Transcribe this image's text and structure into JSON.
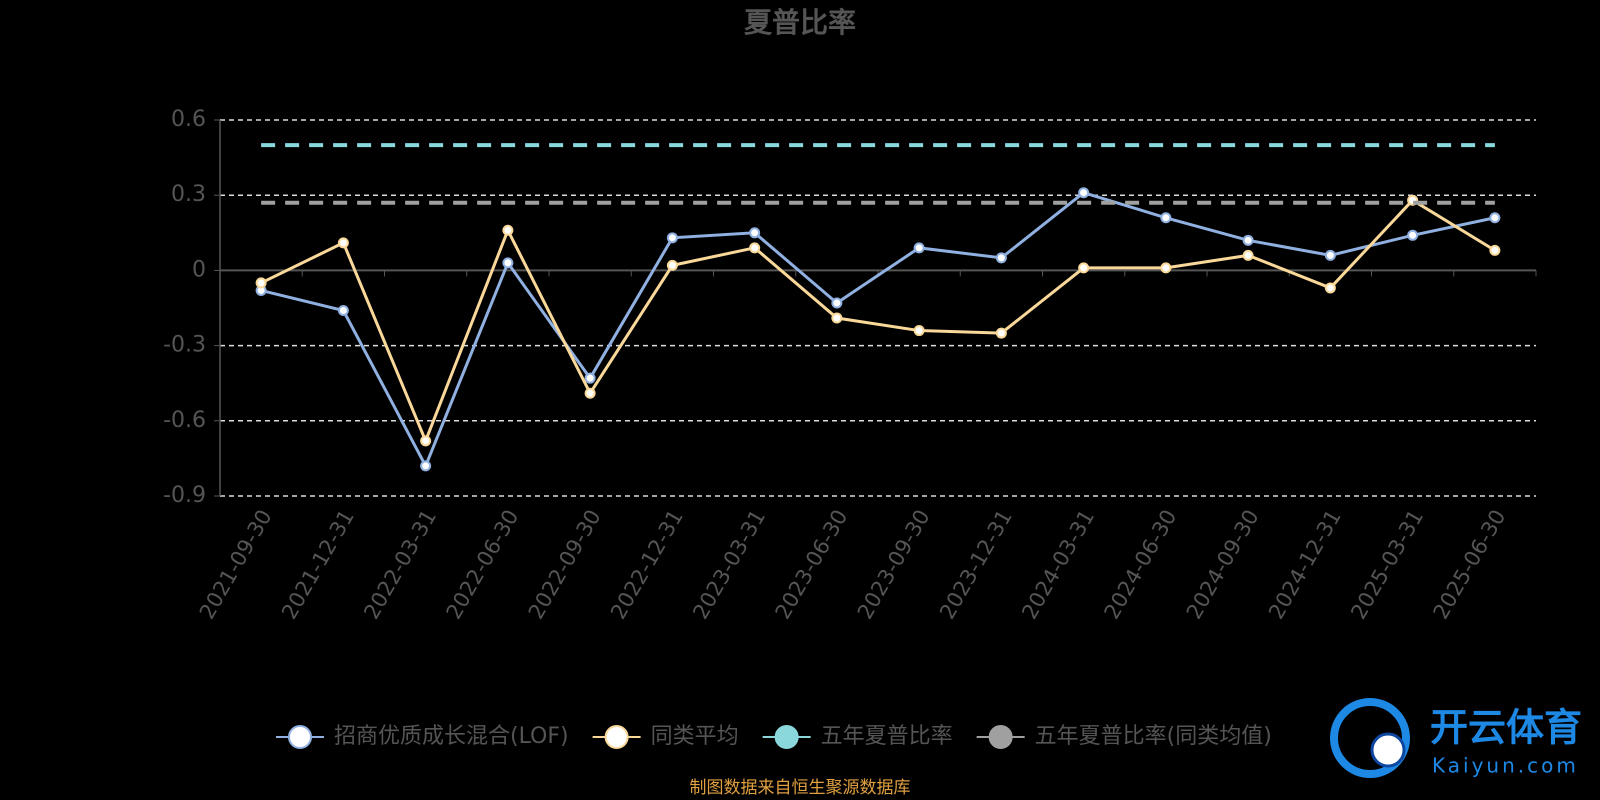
{
  "chart_data": {
    "type": "line",
    "title": "夏普比率",
    "categories": [
      "2021-09-30",
      "2021-12-31",
      "2022-03-31",
      "2022-06-30",
      "2022-09-30",
      "2022-12-31",
      "2023-03-31",
      "2023-06-30",
      "2023-09-30",
      "2023-12-31",
      "2024-03-31",
      "2024-06-30",
      "2024-09-30",
      "2024-12-31",
      "2025-03-31",
      "2025-06-30"
    ],
    "series": [
      {
        "name": "招商优质成长混合(LOF)",
        "color": "#8fb0e0",
        "line_style": "solid",
        "values": [
          -0.08,
          -0.16,
          -0.78,
          0.03,
          -0.43,
          0.13,
          0.15,
          -0.13,
          0.09,
          0.05,
          0.31,
          0.21,
          0.12,
          0.06,
          0.14,
          0.21
        ]
      },
      {
        "name": "同类平均",
        "color": "#f9d899",
        "line_style": "solid",
        "values": [
          -0.05,
          0.11,
          -0.68,
          0.16,
          -0.49,
          0.02,
          0.09,
          -0.19,
          -0.24,
          -0.25,
          0.01,
          0.01,
          0.06,
          -0.07,
          0.28,
          0.08
        ]
      },
      {
        "name": "五年夏普比率",
        "color": "#8ad8dc",
        "line_style": "dashed",
        "values": [
          0.5,
          0.5,
          0.5,
          0.5,
          0.5,
          0.5,
          0.5,
          0.5,
          0.5,
          0.5,
          0.5,
          0.5,
          0.5,
          0.5,
          0.5,
          0.5
        ]
      },
      {
        "name": "五年夏普比率(同类均值)",
        "color": "#a0a0a0",
        "line_style": "dashed",
        "values": [
          0.27,
          0.27,
          0.27,
          0.27,
          0.27,
          0.27,
          0.27,
          0.27,
          0.27,
          0.27,
          0.27,
          0.27,
          0.27,
          0.27,
          0.27,
          0.27
        ]
      }
    ],
    "ylim": [
      -0.9,
      0.6
    ],
    "yticks": [
      0.6,
      0.3,
      0,
      -0.3,
      -0.6,
      -0.9
    ],
    "grid": true,
    "source": "制图数据来自恒生聚源数据库",
    "watermark": {
      "title": "开云体育",
      "subtitle": "Kaiyun.com"
    }
  }
}
